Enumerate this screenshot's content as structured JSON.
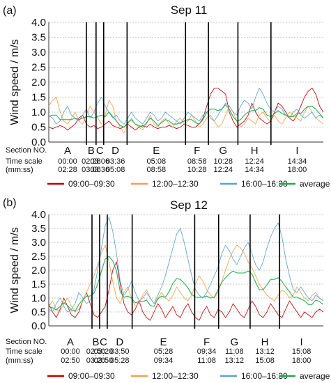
{
  "figure": {
    "legend": [
      {
        "label": "09:00–09:30",
        "color": "#c00000"
      },
      {
        "label": "12:00–12:30",
        "color": "#f4a24a"
      },
      {
        "label": "16:00–16:30",
        "color": "#5ba3d0"
      },
      {
        "label": "average",
        "color": "#1eaa4e"
      }
    ],
    "section_label": "Section NO.",
    "time_scale_label": "Time scale",
    "time_scale_unit": "(mm:ss)"
  },
  "chart_data": [
    {
      "panel": "(a)",
      "title": "Sep 11",
      "type": "line",
      "ylabel": "Wind speed / m/s",
      "ylim": [
        0,
        4.0
      ],
      "yticks": [
        "0.0",
        "0.5",
        "1.0",
        "1.5",
        "2.0",
        "2.5",
        "3.0",
        "3.5",
        "4.0"
      ],
      "grid": "horizontal dashed",
      "section_bounds_mmss": [
        "00:00",
        "02:28",
        "03:06",
        "03:36",
        "05:08",
        "08:58",
        "10:28",
        "12:24",
        "14:34",
        "18:00"
      ],
      "sections": [
        {
          "name": "A",
          "start": "00:00",
          "end": "02:28"
        },
        {
          "name": "B",
          "start": "02:28",
          "end": "03:06"
        },
        {
          "name": "C",
          "start": "03:06",
          "end": "03:36"
        },
        {
          "name": "D",
          "start": "03:36",
          "end": "05:08"
        },
        {
          "name": "E",
          "start": "05:08",
          "end": "08:58"
        },
        {
          "name": "F",
          "start": "08:58",
          "end": "10:28"
        },
        {
          "name": "G",
          "start": "10:28",
          "end": "12:24"
        },
        {
          "name": "H",
          "start": "12:24",
          "end": "14:34"
        },
        {
          "name": "I",
          "start": "14:34",
          "end": "18:00"
        }
      ],
      "series": [
        {
          "name": "09:00–09:30",
          "color": "#c00000",
          "values": [
            0.5,
            0.45,
            0.5,
            0.55,
            0.5,
            0.4,
            0.5,
            0.6,
            0.8,
            0.9,
            0.6,
            0.5,
            0.55,
            0.45,
            0.5,
            0.6,
            0.7,
            0.55,
            0.5,
            0.45,
            0.5,
            0.6,
            0.5,
            0.4,
            0.5,
            0.55,
            0.5,
            0.6,
            0.5,
            0.45,
            0.5,
            0.5,
            0.55,
            0.5,
            0.45,
            0.5,
            0.6,
            0.55,
            0.5,
            0.5,
            0.6,
            0.8,
            1.2,
            1.6,
            1.8,
            1.8,
            1.7,
            1.6,
            1.0,
            0.7,
            0.5,
            0.6,
            0.7,
            0.9,
            1.3,
            1.0,
            0.8,
            0.7,
            0.6,
            0.7,
            1.0,
            1.3,
            1.2,
            1.0,
            0.8,
            0.7,
            0.9,
            1.2,
            1.5,
            1.7,
            1.8,
            1.6,
            1.2,
            1.0
          ]
        },
        {
          "name": "12:00–12:30",
          "color": "#f4a24a",
          "values": [
            1.2,
            1.4,
            1.5,
            1.0,
            0.7,
            0.6,
            0.8,
            1.0,
            0.7,
            0.6,
            0.9,
            1.2,
            1.0,
            0.8,
            0.6,
            0.9,
            1.4,
            1.2,
            0.7,
            0.5,
            0.3,
            0.6,
            0.8,
            0.6,
            0.5,
            0.4,
            0.6,
            0.9,
            0.6,
            0.5,
            0.7,
            0.8,
            0.6,
            0.5,
            0.7,
            0.8,
            0.6,
            0.7,
            0.9,
            0.7,
            0.5,
            0.6,
            0.8,
            0.9,
            0.7,
            0.5,
            0.6,
            0.9,
            1.2,
            1.0,
            0.7,
            0.5,
            0.6,
            0.8,
            0.7,
            0.6,
            0.9,
            1.0,
            0.8,
            0.7,
            0.9,
            0.7,
            0.6,
            0.8,
            1.0,
            0.9,
            0.8,
            0.7,
            1.0,
            1.2,
            1.0,
            0.8,
            0.7,
            0.6
          ]
        },
        {
          "name": "16:00–16:30",
          "color": "#5ba3d0",
          "values": [
            0.9,
            0.8,
            0.6,
            0.7,
            1.0,
            1.2,
            0.9,
            0.8,
            0.7,
            0.9,
            1.1,
            0.8,
            1.0,
            1.3,
            1.5,
            1.2,
            1.0,
            0.8,
            0.9,
            0.7,
            0.6,
            0.8,
            1.0,
            0.8,
            0.7,
            0.6,
            0.8,
            1.0,
            0.9,
            0.7,
            0.8,
            1.0,
            0.9,
            0.8,
            0.7,
            0.6,
            0.8,
            1.0,
            0.9,
            0.8,
            0.7,
            0.9,
            1.0,
            0.8,
            0.7,
            0.9,
            1.1,
            1.3,
            1.2,
            1.0,
            0.9,
            1.2,
            1.4,
            1.3,
            1.1,
            1.5,
            1.8,
            1.6,
            1.3,
            1.1,
            1.0,
            1.2,
            1.1,
            0.9,
            0.8,
            1.0,
            1.1,
            0.9,
            0.8,
            0.9,
            1.0,
            0.8,
            0.9,
            0.8
          ]
        },
        {
          "name": "average",
          "color": "#1eaa4e",
          "values": [
            0.85,
            0.9,
            0.9,
            0.75,
            0.75,
            0.75,
            0.75,
            0.8,
            0.75,
            0.8,
            0.85,
            0.85,
            0.8,
            0.85,
            0.9,
            0.85,
            1.0,
            0.85,
            0.7,
            0.55,
            0.5,
            0.65,
            0.75,
            0.6,
            0.55,
            0.5,
            0.65,
            0.8,
            0.7,
            0.55,
            0.65,
            0.75,
            0.7,
            0.6,
            0.6,
            0.65,
            0.7,
            0.75,
            0.75,
            0.65,
            0.6,
            0.75,
            1.0,
            1.1,
            1.1,
            1.05,
            1.1,
            1.25,
            1.1,
            0.85,
            0.7,
            0.75,
            0.9,
            1.0,
            1.05,
            1.05,
            1.15,
            1.1,
            0.9,
            0.85,
            0.95,
            1.05,
            0.95,
            0.9,
            0.85,
            0.85,
            0.95,
            0.95,
            1.1,
            1.2,
            1.2,
            1.1,
            0.95,
            0.8
          ]
        }
      ]
    },
    {
      "panel": "(b)",
      "title": "Sep 12",
      "type": "line",
      "ylabel": "Wind speed / m/s",
      "ylim": [
        0,
        4.0
      ],
      "yticks": [
        "0.0",
        "0.5",
        "1.0",
        "1.5",
        "2.0",
        "2.5",
        "3.0",
        "3.5",
        "4.0"
      ],
      "grid": "horizontal dashed",
      "section_bounds_mmss": [
        "00:00",
        "02:50",
        "03:20",
        "03:50",
        "05:28",
        "09:34",
        "11:08",
        "13:12",
        "15:08",
        "18:00"
      ],
      "sections": [
        {
          "name": "A",
          "start": "00:00",
          "end": "02:50"
        },
        {
          "name": "B",
          "start": "02:50",
          "end": "03:20"
        },
        {
          "name": "C",
          "start": "03:20",
          "end": "03:50"
        },
        {
          "name": "D",
          "start": "03:50",
          "end": "05:28"
        },
        {
          "name": "E",
          "start": "05:28",
          "end": "09:34"
        },
        {
          "name": "F",
          "start": "09:34",
          "end": "11:08"
        },
        {
          "name": "G",
          "start": "11:08",
          "end": "13:12"
        },
        {
          "name": "H",
          "start": "13:12",
          "end": "15:08"
        },
        {
          "name": "I",
          "start": "15:08",
          "end": "18:00"
        }
      ],
      "series": [
        {
          "name": "09:00–09:30",
          "color": "#c00000",
          "values": [
            0.8,
            0.5,
            0.3,
            0.6,
            1.0,
            0.7,
            0.4,
            0.3,
            0.5,
            0.9,
            1.2,
            0.8,
            0.4,
            0.3,
            0.5,
            0.7,
            1.3,
            2.0,
            2.3,
            1.5,
            0.8,
            0.5,
            0.4,
            0.6,
            0.9,
            0.5,
            0.3,
            0.2,
            0.5,
            0.8,
            0.6,
            0.3,
            0.5,
            0.7,
            0.4,
            0.3,
            0.6,
            0.8,
            0.5,
            0.3,
            0.2,
            0.5,
            0.7,
            0.4,
            0.3,
            0.6,
            0.5,
            0.3,
            0.5,
            0.8,
            0.6,
            0.4,
            0.3,
            0.6,
            0.9,
            0.7,
            0.4,
            0.3,
            0.5,
            0.8,
            0.6,
            0.4,
            0.3,
            0.6,
            0.9,
            0.7,
            0.5,
            0.3,
            0.5,
            0.4,
            0.3,
            0.5,
            0.6,
            0.5
          ]
        },
        {
          "name": "12:00–12:30",
          "color": "#f4a24a",
          "values": [
            0.7,
            0.9,
            0.6,
            0.5,
            0.8,
            1.0,
            0.7,
            0.5,
            0.6,
            0.9,
            1.2,
            1.5,
            1.8,
            2.2,
            2.6,
            2.9,
            2.3,
            1.6,
            1.0,
            0.8,
            1.2,
            1.4,
            1.0,
            0.7,
            0.8,
            1.1,
            1.3,
            1.0,
            0.8,
            1.0,
            1.2,
            1.0,
            0.9,
            1.1,
            1.4,
            1.2,
            1.0,
            0.9,
            1.1,
            1.5,
            1.8,
            1.6,
            1.3,
            1.1,
            1.0,
            1.2,
            1.6,
            2.0,
            2.4,
            2.7,
            2.9,
            2.8,
            2.6,
            2.3,
            2.1,
            1.8,
            1.5,
            1.3,
            1.1,
            1.0,
            0.9,
            1.1,
            1.3,
            1.2,
            1.0,
            1.1,
            1.4,
            1.2,
            1.0,
            0.9,
            1.1,
            1.2,
            1.0,
            0.9
          ]
        },
        {
          "name": "16:00–16:30",
          "color": "#5ba3d0",
          "values": [
            0.6,
            0.5,
            0.8,
            1.0,
            0.7,
            0.5,
            0.6,
            0.8,
            1.2,
            1.0,
            0.8,
            0.9,
            1.3,
            2.0,
            2.8,
            3.6,
            3.9,
            3.4,
            2.6,
            1.6,
            1.1,
            1.3,
            1.6,
            1.2,
            0.9,
            1.0,
            1.2,
            1.0,
            0.8,
            1.1,
            1.4,
            1.8,
            2.3,
            2.8,
            3.3,
            3.5,
            3.0,
            2.4,
            1.8,
            1.3,
            1.1,
            1.0,
            1.2,
            1.5,
            1.8,
            2.1,
            2.6,
            2.9,
            2.7,
            2.4,
            2.2,
            2.5,
            2.8,
            3.0,
            2.6,
            2.2,
            2.0,
            2.3,
            2.8,
            3.2,
            3.5,
            3.7,
            3.2,
            2.4,
            1.8,
            1.3,
            1.2,
            1.4,
            1.2,
            1.0,
            0.9,
            1.1,
            1.0,
            0.9
          ]
        },
        {
          "name": "average",
          "color": "#1eaa4e",
          "values": [
            0.7,
            0.65,
            0.57,
            0.7,
            0.83,
            0.73,
            0.57,
            0.53,
            0.77,
            0.93,
            1.07,
            1.07,
            1.17,
            1.5,
            1.97,
            2.4,
            2.5,
            2.33,
            1.97,
            1.23,
            1.03,
            1.07,
            1.0,
            0.83,
            0.87,
            0.87,
            0.93,
            0.73,
            0.7,
            0.97,
            1.07,
            1.03,
            1.23,
            1.53,
            1.7,
            1.67,
            1.53,
            1.37,
            1.13,
            1.03,
            1.03,
            1.03,
            1.07,
            1.0,
            1.03,
            1.3,
            1.57,
            1.73,
            1.87,
            1.97,
            1.9,
            1.9,
            1.9,
            1.97,
            1.87,
            1.57,
            1.3,
            1.3,
            1.47,
            1.67,
            1.67,
            1.73,
            1.6,
            1.4,
            1.23,
            1.03,
            1.03,
            0.97,
            0.9,
            0.77,
            0.77,
            0.93,
            0.87,
            0.77
          ]
        }
      ]
    }
  ]
}
